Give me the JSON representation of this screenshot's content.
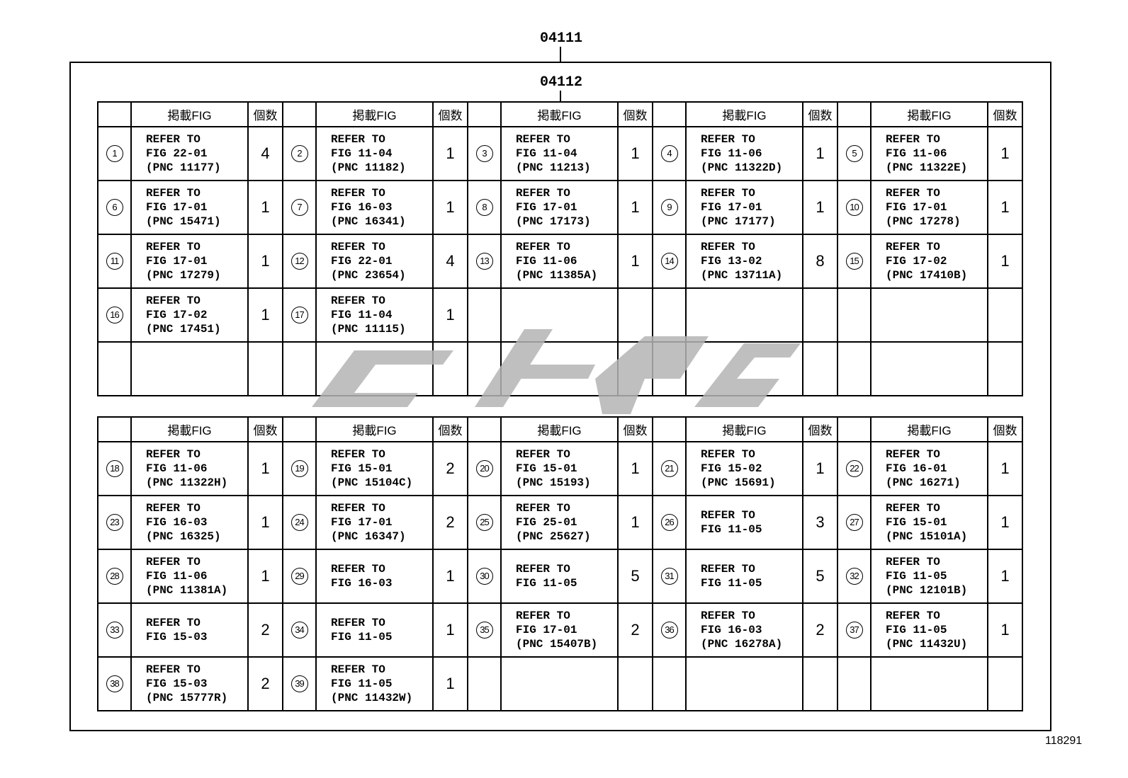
{
  "labels": {
    "outer_ref": "04111",
    "inner_ref": "04112",
    "illustration_no": "118291"
  },
  "header": {
    "fig_col": "掲載FIG",
    "qty_col": "個数"
  },
  "watermark": {
    "color": "#b4b4b4"
  },
  "tables": [
    {
      "rows": [
        [
          {
            "num": "1",
            "lines": [
              "REFER TO",
              "FIG 22-01",
              "(PNC 11177)"
            ],
            "qty": "4"
          },
          {
            "num": "2",
            "lines": [
              "REFER TO",
              "FIG 11-04",
              "(PNC 11182)"
            ],
            "qty": "1"
          },
          {
            "num": "3",
            "lines": [
              "REFER TO",
              "FIG 11-04",
              "(PNC 11213)"
            ],
            "qty": "1"
          },
          {
            "num": "4",
            "lines": [
              "REFER TO",
              "FIG 11-06",
              "(PNC 11322D)"
            ],
            "qty": "1"
          },
          {
            "num": "5",
            "lines": [
              "REFER TO",
              "FIG 11-06",
              "(PNC 11322E)"
            ],
            "qty": "1"
          }
        ],
        [
          {
            "num": "6",
            "lines": [
              "REFER TO",
              "FIG 17-01",
              "(PNC 15471)"
            ],
            "qty": "1"
          },
          {
            "num": "7",
            "lines": [
              "REFER TO",
              "FIG 16-03",
              "(PNC 16341)"
            ],
            "qty": "1"
          },
          {
            "num": "8",
            "lines": [
              "REFER TO",
              "FIG 17-01",
              "(PNC 17173)"
            ],
            "qty": "1"
          },
          {
            "num": "9",
            "lines": [
              "REFER TO",
              "FIG 17-01",
              "(PNC 17177)"
            ],
            "qty": "1"
          },
          {
            "num": "10",
            "lines": [
              "REFER TO",
              "FIG 17-01",
              "(PNC 17278)"
            ],
            "qty": "1"
          }
        ],
        [
          {
            "num": "11",
            "lines": [
              "REFER TO",
              "FIG 17-01",
              "(PNC 17279)"
            ],
            "qty": "1"
          },
          {
            "num": "12",
            "lines": [
              "REFER TO",
              "FIG 22-01",
              "(PNC 23654)"
            ],
            "qty": "4"
          },
          {
            "num": "13",
            "lines": [
              "REFER TO",
              "FIG 11-06",
              "(PNC 11385A)"
            ],
            "qty": "1"
          },
          {
            "num": "14",
            "lines": [
              "REFER TO",
              "FIG 13-02",
              "(PNC 13711A)"
            ],
            "qty": "8"
          },
          {
            "num": "15",
            "lines": [
              "REFER TO",
              "FIG 17-02",
              "(PNC 17410B)"
            ],
            "qty": "1"
          }
        ],
        [
          {
            "num": "16",
            "lines": [
              "REFER TO",
              "FIG 17-02",
              "(PNC 17451)"
            ],
            "qty": "1"
          },
          {
            "num": "17",
            "lines": [
              "REFER TO",
              "FIG 11-04",
              "(PNC 11115)"
            ],
            "qty": "1"
          },
          null,
          null,
          null
        ],
        [
          null,
          null,
          null,
          null,
          null
        ]
      ]
    },
    {
      "rows": [
        [
          {
            "num": "18",
            "lines": [
              "REFER TO",
              "FIG 11-06",
              "(PNC 11322H)"
            ],
            "qty": "1"
          },
          {
            "num": "19",
            "lines": [
              "REFER TO",
              "FIG 15-01",
              "(PNC 15104C)"
            ],
            "qty": "2"
          },
          {
            "num": "20",
            "lines": [
              "REFER TO",
              "FIG 15-01",
              "(PNC 15193)"
            ],
            "qty": "1"
          },
          {
            "num": "21",
            "lines": [
              "REFER TO",
              "FIG 15-02",
              "(PNC 15691)"
            ],
            "qty": "1"
          },
          {
            "num": "22",
            "lines": [
              "REFER TO",
              "FIG 16-01",
              "(PNC 16271)"
            ],
            "qty": "1"
          }
        ],
        [
          {
            "num": "23",
            "lines": [
              "REFER TO",
              "FIG 16-03",
              "(PNC 16325)"
            ],
            "qty": "1"
          },
          {
            "num": "24",
            "lines": [
              "REFER TO",
              "FIG 17-01",
              "(PNC 16347)"
            ],
            "qty": "2"
          },
          {
            "num": "25",
            "lines": [
              "REFER TO",
              "FIG 25-01",
              "(PNC 25627)"
            ],
            "qty": "1"
          },
          {
            "num": "26",
            "lines": [
              "REFER TO",
              "FIG 11-05"
            ],
            "qty": "3"
          },
          {
            "num": "27",
            "lines": [
              "REFER TO",
              "FIG 15-01",
              "(PNC 15101A)"
            ],
            "qty": "1"
          }
        ],
        [
          {
            "num": "28",
            "lines": [
              "REFER TO",
              "FIG 11-06",
              "(PNC 11381A)"
            ],
            "qty": "1"
          },
          {
            "num": "29",
            "lines": [
              "REFER TO",
              "FIG 16-03"
            ],
            "qty": "1"
          },
          {
            "num": "30",
            "lines": [
              "REFER TO",
              "FIG 11-05"
            ],
            "qty": "5"
          },
          {
            "num": "31",
            "lines": [
              "REFER TO",
              "FIG 11-05"
            ],
            "qty": "5"
          },
          {
            "num": "32",
            "lines": [
              "REFER TO",
              "FIG 11-05",
              "(PNC 12101B)"
            ],
            "qty": "1"
          }
        ],
        [
          {
            "num": "33",
            "lines": [
              "REFER TO",
              "FIG 15-03"
            ],
            "qty": "2"
          },
          {
            "num": "34",
            "lines": [
              "REFER TO",
              "FIG 11-05"
            ],
            "qty": "1"
          },
          {
            "num": "35",
            "lines": [
              "REFER TO",
              "FIG 17-01",
              "(PNC 15407B)"
            ],
            "qty": "2"
          },
          {
            "num": "36",
            "lines": [
              "REFER TO",
              "FIG 16-03",
              "(PNC 16278A)"
            ],
            "qty": "2"
          },
          {
            "num": "37",
            "lines": [
              "REFER TO",
              "FIG 11-05",
              "(PNC 11432U)"
            ],
            "qty": "1"
          }
        ],
        [
          {
            "num": "38",
            "lines": [
              "REFER TO",
              "FIG 15-03",
              "(PNC 15777R)"
            ],
            "qty": "2"
          },
          {
            "num": "39",
            "lines": [
              "REFER TO",
              "FIG 11-05",
              "(PNC 11432W)"
            ],
            "qty": "1"
          },
          null,
          null,
          null
        ]
      ]
    }
  ]
}
